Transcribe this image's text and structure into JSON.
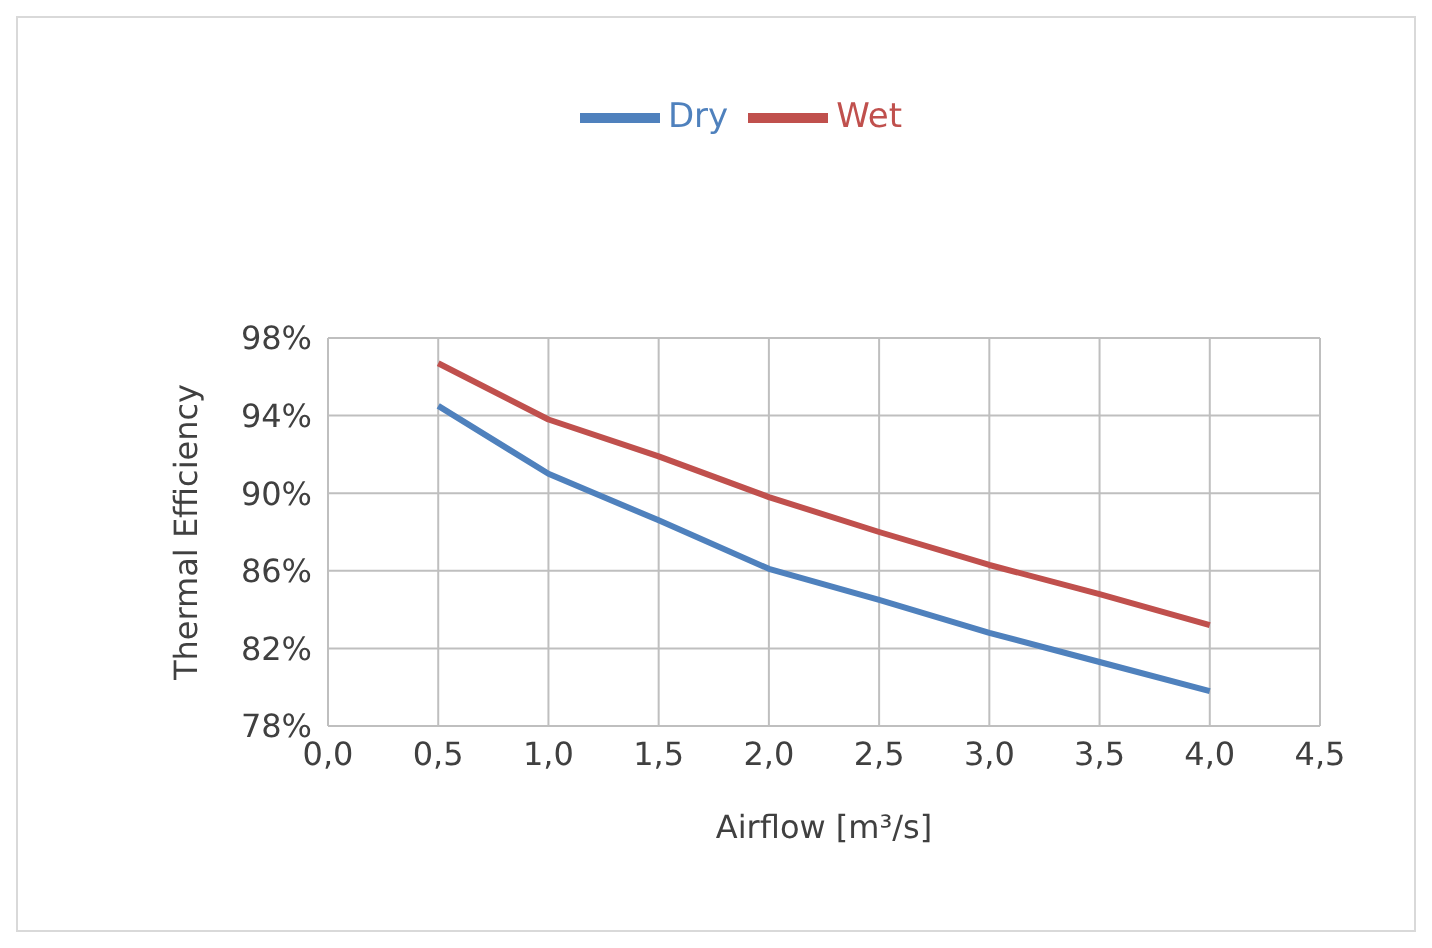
{
  "chart_data": {
    "type": "line",
    "xlabel": "Airflow [m³/s]",
    "ylabel": "Thermal Efficiency",
    "x": [
      0.5,
      1.0,
      1.5,
      2.0,
      2.5,
      3.0,
      3.5,
      4.0
    ],
    "series": [
      {
        "name": "Dry",
        "color": "#4f81bd",
        "values": [
          94.5,
          91.0,
          88.6,
          86.1,
          84.5,
          82.8,
          81.3,
          79.8
        ]
      },
      {
        "name": "Wet",
        "color": "#c0504d",
        "values": [
          96.7,
          93.8,
          91.9,
          89.8,
          88.0,
          86.3,
          84.8,
          83.2
        ]
      }
    ],
    "xlim": [
      0,
      4.5
    ],
    "xticks": [
      {
        "value": 0,
        "label": "0,0"
      },
      {
        "value": 0.5,
        "label": "0,5"
      },
      {
        "value": 1,
        "label": "1,0"
      },
      {
        "value": 1.5,
        "label": "1,5"
      },
      {
        "value": 2,
        "label": "2,0"
      },
      {
        "value": 2.5,
        "label": "2,5"
      },
      {
        "value": 3,
        "label": "3,0"
      },
      {
        "value": 3.5,
        "label": "3,5"
      },
      {
        "value": 4,
        "label": "4,0"
      },
      {
        "value": 4.5,
        "label": "4,5"
      }
    ],
    "ylim": [
      78,
      98
    ],
    "yticks": [
      {
        "value": 78,
        "label": "78%"
      },
      {
        "value": 82,
        "label": "82%"
      },
      {
        "value": 86,
        "label": "86%"
      },
      {
        "value": 90,
        "label": "90%"
      },
      {
        "value": 94,
        "label": "94%"
      },
      {
        "value": 98,
        "label": "98%"
      }
    ],
    "grid": true,
    "legend": "top",
    "marker": "none",
    "line_style": "solid"
  }
}
